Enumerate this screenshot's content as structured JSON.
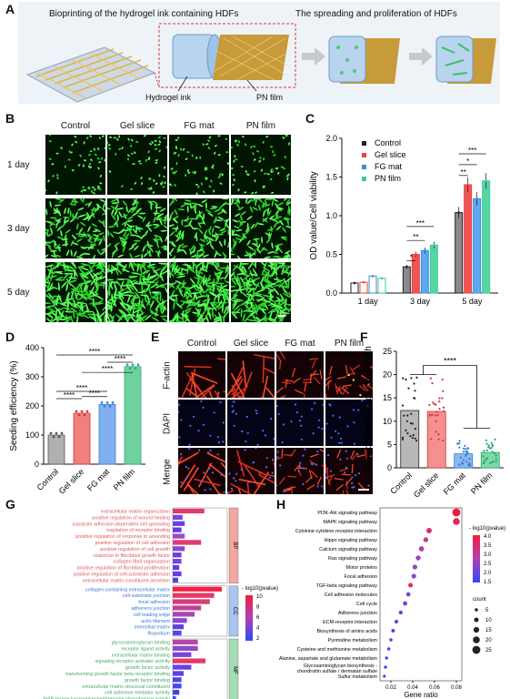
{
  "panelA": {
    "label": "A",
    "title_left": "Bioprinting of the hydrogel ink containing HDFs",
    "title_right": "The spreading and proliferation of HDFs",
    "label_ink": "Hydrogel ink",
    "label_film": "PN film"
  },
  "panelB": {
    "label": "B",
    "columns": [
      "Control",
      "Gel slice",
      "FG mat",
      "PN film"
    ],
    "rows": [
      "1 day",
      "3 day",
      "5 day"
    ]
  },
  "panelC": {
    "label": "C",
    "legend": [
      "Control",
      "Gel slice",
      "FG mat",
      "PN film"
    ],
    "colors": [
      "#222222",
      "#e8433f",
      "#3d8fd8",
      "#3fc89a"
    ],
    "stars": [
      "*",
      "**",
      "***",
      "**",
      "*",
      "***"
    ]
  },
  "panelD": {
    "label": "D",
    "stars": [
      "****",
      "****",
      "****",
      "****",
      "****",
      "****"
    ]
  },
  "panelE": {
    "label": "E",
    "columns": [
      "Control",
      "Gel slice",
      "FG mat",
      "PN film"
    ],
    "rows": [
      "F-actin",
      "DAPI",
      "Merge"
    ]
  },
  "panelF": {
    "label": "F",
    "stars": "****"
  },
  "panelG": {
    "label": "G",
    "bp_terms": [
      "extracellular matrix organization",
      "positive regulation of wound healing",
      "substrate adhesion-dependent cell spreading",
      "regulation of receptor binding",
      "positive regulation of response to wounding",
      "positive regulation of cell adhesion",
      "positive regulation of cell growth",
      "response to fibroblast growth factor",
      "collagen fibril organization",
      "positive regulation of fibroblast proliferation",
      "positive regulation of cell-substrate adhesion",
      "extracellular matrix constituent secretion"
    ],
    "cc_terms": [
      "collagen-containing extracellular matrix",
      "cell-substrate junction",
      "focal adhesion",
      "adherens junction",
      "cell leading edge",
      "actin filament",
      "interstitial matrix",
      "filopodium"
    ],
    "mf_terms": [
      "glycosaminoglycan binding",
      "receptor ligand activity",
      "extracellular matrix binding",
      "signaling receptor activator activity",
      "growth factor activity",
      "transforming growth factor beta receptor binding",
      "growth factor binding",
      "extracellular matrix structural constituent",
      "cell adhesion mediator activity",
      "MAP kinase tyrosine/serine/threonine phosphatase activity"
    ],
    "bp_counts": [
      29,
      9,
      11,
      8,
      11,
      26,
      11,
      8,
      8,
      6,
      8,
      5
    ],
    "cc_counts": [
      45,
      38,
      34,
      26,
      20,
      13,
      10,
      8
    ],
    "mf_counts": [
      23,
      23,
      17,
      30,
      17,
      10,
      8,
      8,
      6,
      3
    ],
    "bp_colors": [
      "#e43a6c",
      "#7a45d8",
      "#6f3fe0",
      "#5a3ee6",
      "#9c4ad0",
      "#e23a74",
      "#8a48d4",
      "#6a3ee2",
      "#7c44d8",
      "#5b3de8",
      "#6340e4",
      "#4a4ae8"
    ],
    "cc_colors": [
      "#f2224a",
      "#e83a64",
      "#d93c7a",
      "#c04294",
      "#a946b4",
      "#8a48d4",
      "#6442e0",
      "#4d4ae8"
    ],
    "mf_colors": [
      "#b646a8",
      "#9348c8",
      "#7d44d6",
      "#e43a6a",
      "#6a40e0",
      "#5a40e6",
      "#5240e8",
      "#4a48e8",
      "#4242ea",
      "#3a46ea"
    ],
    "xticks": [
      "0",
      "10",
      "20",
      "30",
      "40",
      "50"
    ],
    "xlabel": "Counts",
    "cat_bp": "BP",
    "cat_cc": "CC",
    "cat_mf": "MF",
    "legend_title": "- log10(pvalue)",
    "legend_ticks": [
      "10",
      "8",
      "6",
      "4",
      "2"
    ]
  },
  "panelH": {
    "label": "H",
    "terms": [
      "PI3K-Akt signaling pathway",
      "MAPK signaling pathway",
      "Cytokine-cytokine receptor interaction",
      "Hippo signaling pathway",
      "Calcium signaling pathway",
      "Ras signaling pathway",
      "Motor proteins",
      "Focal adhesion",
      "TGF-beta signaling pathway",
      "Cell adhesion molecules",
      "Cell cycle",
      "Adherens junction",
      "ECM-receptor interaction",
      "Biosynthesis of amino acids",
      "Pyrimidine metabolism",
      "Cysteine and methionine metabolism",
      "Alanine, aspartate and glutamate metabolism",
      "Glycosaminoglycan biosynthesis -",
      "chondroitin sulfate / dermatan sulfate",
      "Sulfur metabolism"
    ],
    "xticks": [
      "0.02",
      "0.04",
      "0.06",
      "0.08"
    ],
    "xlabel": "Gene ratio",
    "legend_title": "- log10(pvalue)",
    "legend_ticks": [
      "4.0",
      "3.5",
      "3.0",
      "2.5",
      "2.0",
      "1.5"
    ],
    "count_title": "count",
    "count_ticks": [
      "5",
      "10",
      "15",
      "20",
      "25"
    ]
  },
  "chart_data": [
    {
      "type": "bar",
      "panel": "C",
      "ylabel": "OD value/Cell viability",
      "categories": [
        "1 day",
        "3 day",
        "5 day"
      ],
      "yticks": [
        "0.0",
        "0.5",
        "1.0",
        "1.5",
        "2.0"
      ],
      "ylim": [
        0,
        2.0
      ],
      "series": [
        {
          "name": "Control",
          "values": [
            0.13,
            0.34,
            1.04
          ]
        },
        {
          "name": "Gel slice",
          "values": [
            0.14,
            0.5,
            1.4
          ]
        },
        {
          "name": "FG mat",
          "values": [
            0.22,
            0.55,
            1.22
          ]
        },
        {
          "name": "PN film",
          "values": [
            0.19,
            0.62,
            1.45
          ]
        }
      ]
    },
    {
      "type": "bar",
      "panel": "D",
      "ylabel": "Seeding efficiency (%)",
      "categories": [
        "Control",
        "Gel slice",
        "FG mat",
        "PN film"
      ],
      "yticks": [
        "0",
        "100",
        "200",
        "300",
        "400"
      ],
      "ylim": [
        0,
        400
      ],
      "values": [
        100,
        175,
        205,
        335
      ],
      "colors": [
        "#b0b0b0",
        "#f08080",
        "#80b0f0",
        "#70d0a0"
      ]
    },
    {
      "type": "bar",
      "panel": "F",
      "ylabel": "Ratio between length and width",
      "categories": [
        "Control",
        "Gel slice",
        "FG mat",
        "PN film"
      ],
      "yticks": [
        "0",
        "5",
        "10",
        "15",
        "20",
        "25"
      ],
      "ylim": [
        0,
        25
      ],
      "values": [
        12.3,
        12.1,
        3.0,
        3.3
      ],
      "colors": [
        "#b8b8b8",
        "#f49090",
        "#8ab8f0",
        "#80d8a8"
      ]
    },
    {
      "type": "scatter",
      "panel": "H",
      "x": [
        0.08,
        0.08,
        0.055,
        0.052,
        0.048,
        0.045,
        0.042,
        0.041,
        0.038,
        0.036,
        0.033,
        0.029,
        0.025,
        0.022,
        0.02,
        0.018,
        0.016,
        0.015,
        0.014
      ],
      "counts": [
        25,
        20,
        14,
        12,
        13,
        12,
        11,
        11,
        10,
        9,
        9,
        8,
        7,
        6,
        5,
        5,
        4,
        4,
        3
      ],
      "colors": [
        "#f01b40",
        "#e2285c",
        "#d83070",
        "#c53a8e",
        "#b040a8",
        "#a044b8",
        "#9446c4",
        "#8a48cc",
        "#e02a64",
        "#7e4ad4",
        "#6e46dc",
        "#6044e0",
        "#5a44e4",
        "#5244e6",
        "#4a46e8",
        "#4646ea",
        "#4248ea",
        "#3c48ec",
        "#3848ec"
      ]
    }
  ]
}
